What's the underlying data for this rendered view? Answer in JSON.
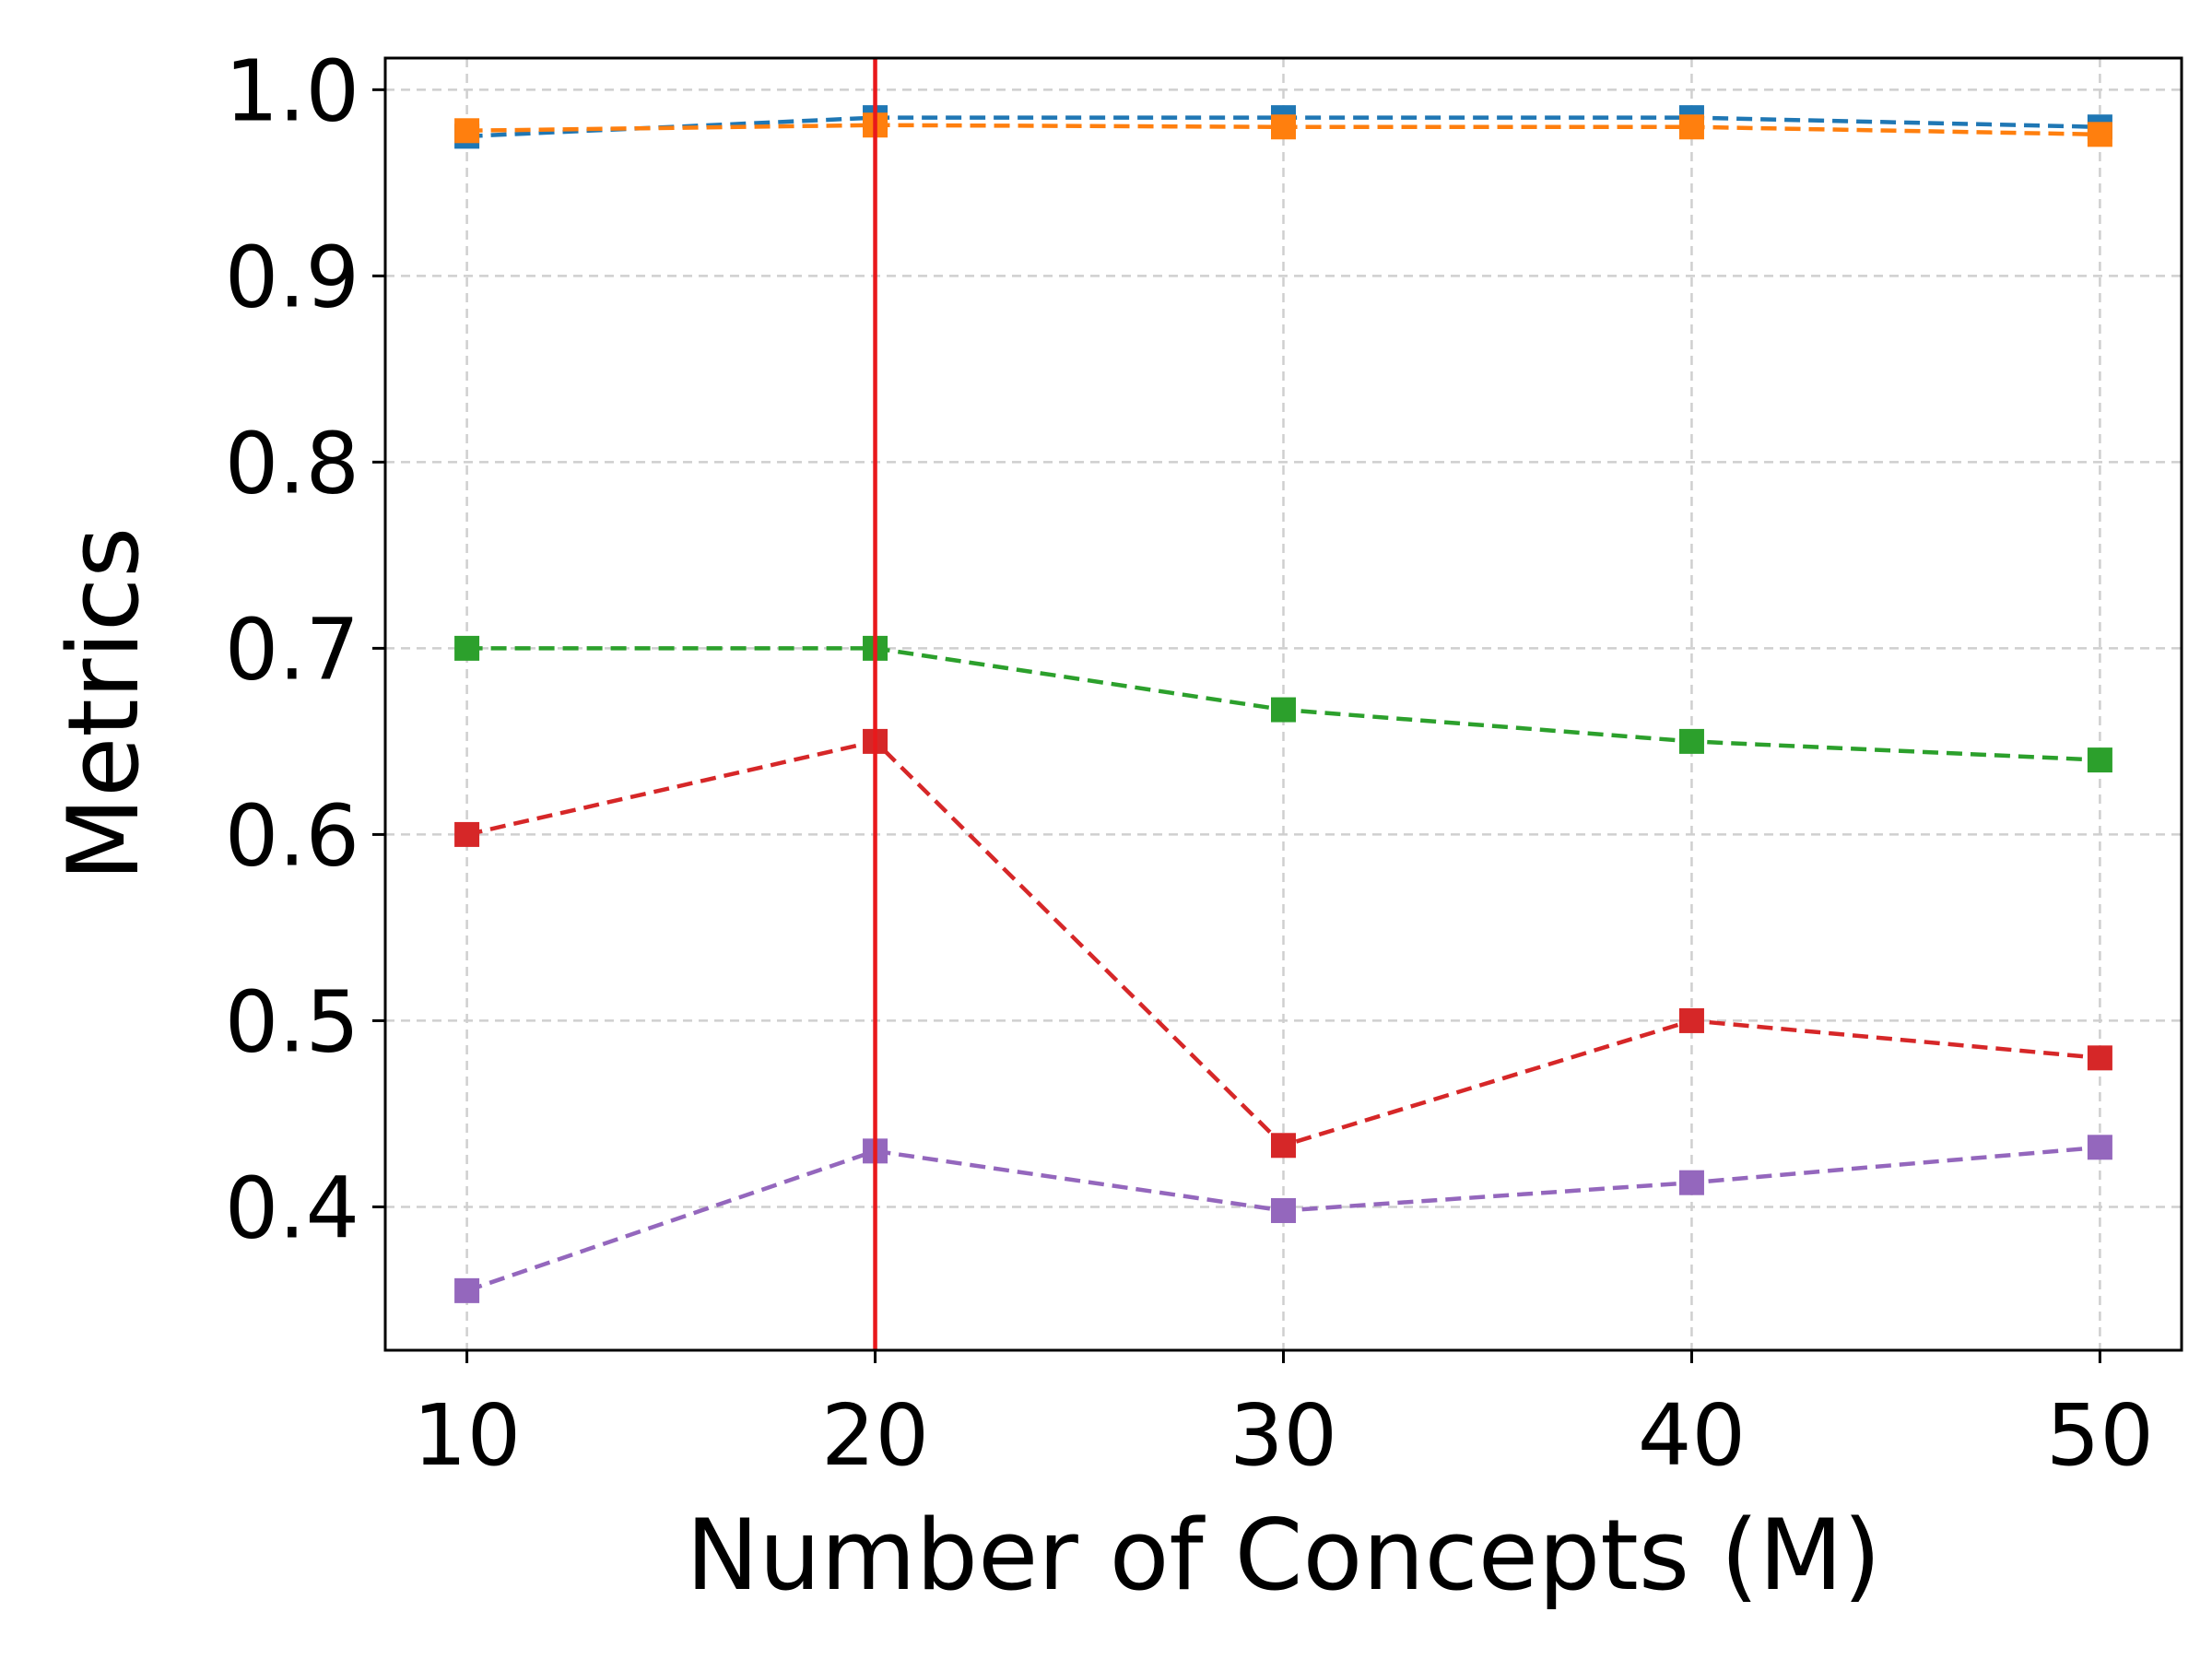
{
  "chart_data": {
    "type": "line",
    "xlabel": "Number of Concepts (M)",
    "ylabel": "Metrics",
    "x": [
      10,
      20,
      30,
      40,
      50
    ],
    "x_ticks": [
      "10",
      "20",
      "30",
      "40",
      "50"
    ],
    "y_ticks": [
      "0.4",
      "0.5",
      "0.6",
      "0.7",
      "0.8",
      "0.9",
      "1.0"
    ],
    "xlim": [
      8,
      52
    ],
    "ylim": [
      0.323,
      1.017
    ],
    "grid": true,
    "vertical_marker": {
      "x": 20,
      "color": "#e8191c"
    },
    "series": [
      {
        "color": "#1f77b4",
        "marker": "square",
        "values": [
          0.975,
          0.985,
          0.985,
          0.985,
          0.98
        ]
      },
      {
        "color": "#ff7f0e",
        "marker": "square",
        "values": [
          0.978,
          0.981,
          0.98,
          0.98,
          0.976
        ]
      },
      {
        "color": "#2ca02c",
        "marker": "square",
        "values": [
          0.7,
          0.7,
          0.667,
          0.65,
          0.64
        ]
      },
      {
        "color": "#d62728",
        "marker": "square",
        "values": [
          0.6,
          0.65,
          0.433,
          0.5,
          0.48
        ]
      },
      {
        "color": "#9467bd",
        "marker": "square",
        "values": [
          0.355,
          0.43,
          0.398,
          0.413,
          0.432
        ]
      }
    ]
  }
}
